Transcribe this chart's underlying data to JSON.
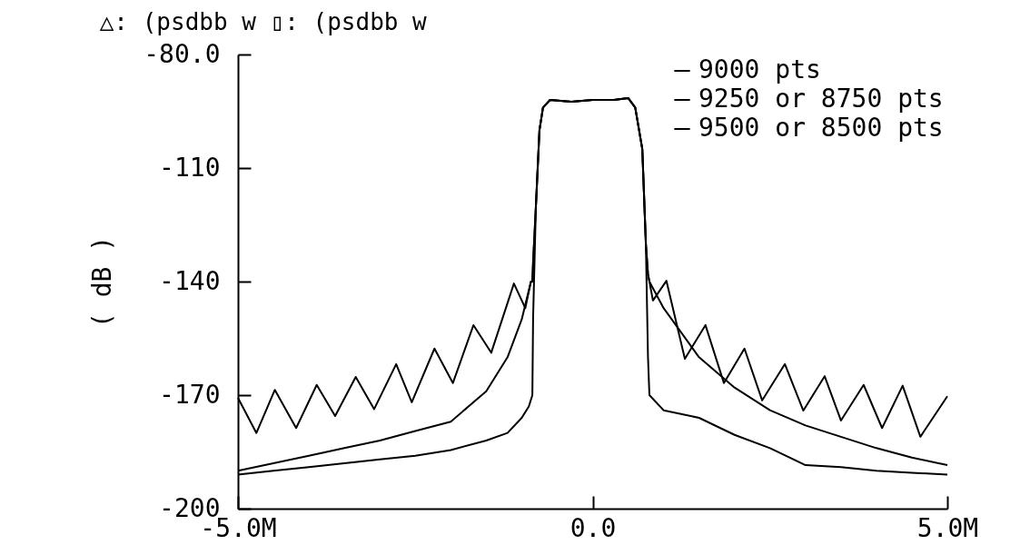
{
  "chart_data": {
    "type": "line",
    "title": "△: (psdbb w ▯: (psdbb w",
    "ylabel": "( dB )",
    "xlim": [
      -5,
      5
    ],
    "xticks": [
      {
        "value": -5,
        "label": "-5.0M"
      },
      {
        "value": 0,
        "label": "0.0"
      },
      {
        "value": 5,
        "label": "5.0M"
      }
    ],
    "ylim": [
      -200,
      -80
    ],
    "yticks": [
      {
        "value": -200,
        "label": "-200"
      },
      {
        "value": -170,
        "label": "-170"
      },
      {
        "value": -140,
        "label": "-140"
      },
      {
        "value": -110,
        "label": "-110"
      },
      {
        "value": -80,
        "label": "-80.0"
      }
    ],
    "legend": "top right",
    "line_style": "solid",
    "series": [
      {
        "name": "9000 pts",
        "color": "#000000",
        "x": [
          -5,
          -4.5,
          -4,
          -3.5,
          -3,
          -2.5,
          -2,
          -1.5,
          -1.2,
          -1,
          -0.9,
          -0.85,
          -0.84,
          -0.8,
          -0.75,
          -0.7,
          -0.6,
          -0.3,
          0,
          0.3,
          0.5,
          0.6,
          0.7,
          0.75,
          0.78,
          0.8,
          1,
          1.5,
          2,
          2.5,
          3,
          3.5,
          4,
          4.5,
          5
        ],
        "values": [
          -191,
          -190,
          -189,
          -188,
          -187,
          -186,
          -184.5,
          -182,
          -180,
          -176,
          -173,
          -170,
          -150,
          -120,
          -100,
          -94,
          -92,
          -92.5,
          -92,
          -92,
          -91.5,
          -94,
          -105,
          -130,
          -160,
          -170,
          -174,
          -176,
          -180.5,
          -184,
          -188.5,
          -189,
          -190,
          -190.5,
          -191
        ]
      },
      {
        "name": "9250 or 8750 pts",
        "color": "#000000",
        "x": [
          -5,
          -4.5,
          -4,
          -3.5,
          -3,
          -2.5,
          -2,
          -1.5,
          -1.2,
          -1,
          -0.87,
          -0.85,
          -0.84,
          -0.8,
          -0.75,
          -0.7,
          -0.6,
          -0.3,
          0,
          0.3,
          0.5,
          0.6,
          0.7,
          0.75,
          0.78,
          0.8,
          1,
          1.5,
          2,
          2.5,
          3,
          3.5,
          4,
          4.5,
          5
        ],
        "values": [
          -190,
          -188,
          -186,
          -184,
          -182,
          -179.5,
          -177,
          -169,
          -160,
          -150,
          -140,
          -140,
          -135,
          -120,
          -100,
          -94,
          -92,
          -92.5,
          -92,
          -92,
          -91.5,
          -94,
          -105,
          -130,
          -138,
          -140,
          -147,
          -160,
          -168,
          -174,
          -178,
          -181,
          -184,
          -186.5,
          -188.5
        ]
      },
      {
        "name": "9500 or 8500 pts",
        "color": "#000000",
        "x": [
          -5,
          -4.74,
          -4.48,
          -4.18,
          -3.89,
          -3.63,
          -3.34,
          -3.08,
          -2.77,
          -2.55,
          -2.23,
          -1.97,
          -1.68,
          -1.43,
          -1.11,
          -0.95,
          -0.87,
          -0.85,
          -0.84,
          -0.8,
          -0.75,
          -0.7,
          -0.6,
          -0.3,
          0,
          0.3,
          0.5,
          0.6,
          0.7,
          0.75,
          0.78,
          0.85,
          1.04,
          1.3,
          1.59,
          1.85,
          2.14,
          2.39,
          2.71,
          2.97,
          3.27,
          3.5,
          3.82,
          4.08,
          4.37,
          4.62,
          5
        ],
        "values": [
          -170.7,
          -180,
          -168.6,
          -178.7,
          -167.3,
          -175.5,
          -165.2,
          -173.7,
          -161.8,
          -171.9,
          -157.7,
          -166.8,
          -151.5,
          -158.8,
          -140.5,
          -147,
          -140,
          -140,
          -135,
          -120,
          -100,
          -94,
          -92,
          -92.5,
          -92,
          -92,
          -91.5,
          -94,
          -105,
          -130,
          -138,
          -145,
          -139.8,
          -160.4,
          -151.5,
          -166.8,
          -157.7,
          -171.4,
          -161.8,
          -174.1,
          -165,
          -176.7,
          -167.3,
          -178.7,
          -167.5,
          -181,
          -170.3
        ]
      }
    ]
  }
}
